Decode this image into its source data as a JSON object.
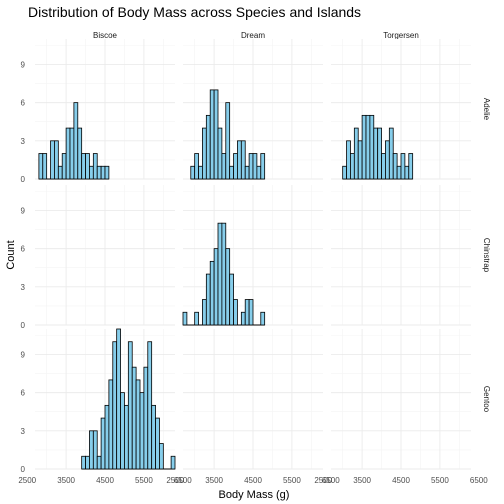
{
  "chart_data": {
    "type": "bar",
    "title": "Distribution of Body Mass across Species and Islands",
    "xlabel": "Body Mass (g)",
    "ylabel": "Count",
    "xlim": [
      2700,
      6300
    ],
    "ylim": [
      0,
      11
    ],
    "x_ticks": [
      2500,
      3500,
      4500,
      5500,
      6500
    ],
    "x_tick_labels": [
      "2500",
      "3500",
      "4500",
      "5500",
      "6500"
    ],
    "y_ticks": [
      0,
      3,
      6,
      9
    ],
    "y_tick_labels": [
      "0",
      "3",
      "6",
      "9"
    ],
    "bar_fill": "#87ceeb",
    "bar_outline": "#000000",
    "grid": true,
    "columns": [
      "Biscoe",
      "Dream",
      "Torgersen"
    ],
    "rows": [
      "Adelie",
      "Chinstrap",
      "Gentoo"
    ],
    "panels": [
      {
        "row": "Adelie",
        "col": "Biscoe",
        "bins": [
          [
            2850,
            2
          ],
          [
            2950,
            2
          ],
          [
            3150,
            3
          ],
          [
            3250,
            3
          ],
          [
            3350,
            1
          ],
          [
            3450,
            2
          ],
          [
            3550,
            4
          ],
          [
            3650,
            4
          ],
          [
            3750,
            6
          ],
          [
            3850,
            4
          ],
          [
            3950,
            2
          ],
          [
            4050,
            2
          ],
          [
            4150,
            1
          ],
          [
            4250,
            2
          ],
          [
            4350,
            1
          ],
          [
            4450,
            1
          ],
          [
            4550,
            1
          ]
        ]
      },
      {
        "row": "Adelie",
        "col": "Dream",
        "bins": [
          [
            2950,
            1
          ],
          [
            3050,
            2
          ],
          [
            3150,
            1
          ],
          [
            3250,
            4
          ],
          [
            3350,
            5
          ],
          [
            3450,
            7
          ],
          [
            3550,
            7
          ],
          [
            3650,
            4
          ],
          [
            3750,
            2
          ],
          [
            3850,
            6
          ],
          [
            3950,
            1
          ],
          [
            4050,
            2
          ],
          [
            4150,
            3
          ],
          [
            4250,
            3
          ],
          [
            4350,
            1
          ],
          [
            4450,
            2
          ],
          [
            4550,
            2
          ],
          [
            4650,
            1
          ],
          [
            4750,
            2
          ]
        ]
      },
      {
        "row": "Adelie",
        "col": "Torgersen",
        "bins": [
          [
            3050,
            1
          ],
          [
            3150,
            3
          ],
          [
            3250,
            2
          ],
          [
            3350,
            4
          ],
          [
            3450,
            3
          ],
          [
            3550,
            5
          ],
          [
            3650,
            5
          ],
          [
            3750,
            5
          ],
          [
            3850,
            4
          ],
          [
            3950,
            4
          ],
          [
            4050,
            2
          ],
          [
            4150,
            3
          ],
          [
            4250,
            4
          ],
          [
            4350,
            2
          ],
          [
            4450,
            1
          ],
          [
            4550,
            2
          ],
          [
            4650,
            1
          ],
          [
            4750,
            2
          ]
        ]
      },
      {
        "row": "Chinstrap",
        "col": "Dream",
        "bins": [
          [
            2750,
            1
          ],
          [
            3050,
            1
          ],
          [
            3250,
            2
          ],
          [
            3350,
            4
          ],
          [
            3450,
            5
          ],
          [
            3550,
            6
          ],
          [
            3650,
            8
          ],
          [
            3750,
            8
          ],
          [
            3850,
            6
          ],
          [
            3950,
            4
          ],
          [
            4050,
            2
          ],
          [
            4250,
            1
          ],
          [
            4350,
            2
          ],
          [
            4450,
            2
          ],
          [
            4750,
            1
          ]
        ]
      },
      {
        "row": "Gentoo",
        "col": "Biscoe",
        "bins": [
          [
            3950,
            1
          ],
          [
            4050,
            1
          ],
          [
            4150,
            3
          ],
          [
            4250,
            3
          ],
          [
            4350,
            1
          ],
          [
            4450,
            4
          ],
          [
            4550,
            5
          ],
          [
            4650,
            7
          ],
          [
            4750,
            10
          ],
          [
            4850,
            11
          ],
          [
            4950,
            6
          ],
          [
            5050,
            5
          ],
          [
            5150,
            10
          ],
          [
            5250,
            8
          ],
          [
            5350,
            7
          ],
          [
            5450,
            6
          ],
          [
            5550,
            8
          ],
          [
            5650,
            10
          ],
          [
            5750,
            5
          ],
          [
            5850,
            4
          ],
          [
            5950,
            2
          ],
          [
            6050,
            0
          ],
          [
            6250,
            1
          ]
        ]
      }
    ]
  }
}
